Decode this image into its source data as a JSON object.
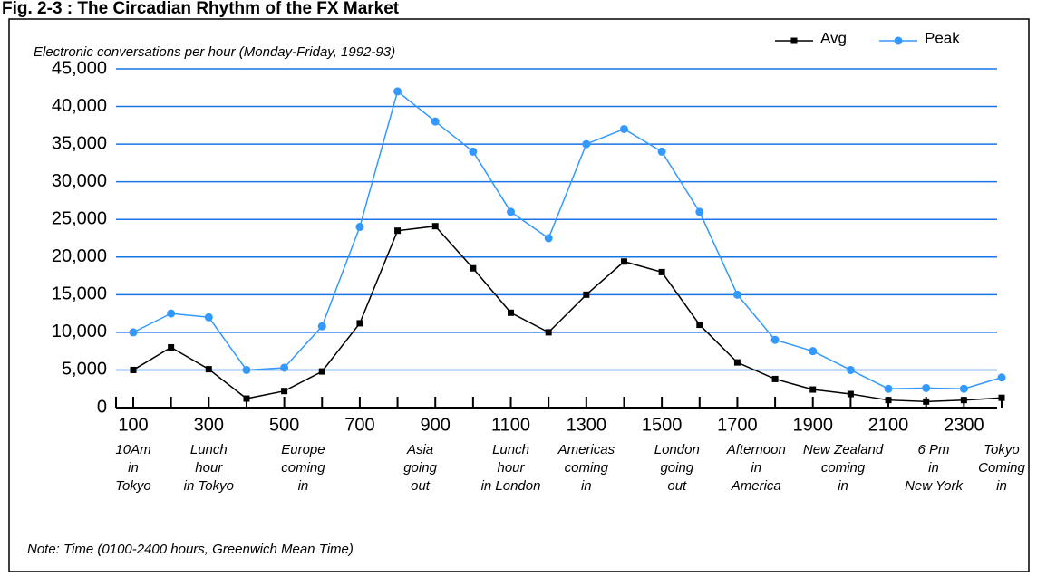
{
  "chart_data": {
    "type": "line",
    "title": "Fig. 2-3 : The Circadian Rhythm of the FX Market",
    "y_axis_label": "Electronic conversations per hour (Monday-Friday, 1992-93)",
    "note": "Note: Time (0100-2400 hours, Greenwich Mean Time)",
    "x": [
      100,
      200,
      300,
      400,
      500,
      600,
      700,
      800,
      900,
      1000,
      1100,
      1200,
      1300,
      1400,
      1500,
      1600,
      1700,
      1800,
      1900,
      2000,
      2100,
      2200,
      2300,
      2400
    ],
    "series": [
      {
        "name": "Avg",
        "color": "#000000",
        "marker": "square",
        "values": [
          5000,
          8000,
          5100,
          1200,
          2200,
          4800,
          11200,
          23500,
          24100,
          18500,
          12600,
          10000,
          15000,
          19400,
          18000,
          11000,
          6000,
          3800,
          2400,
          1800,
          1000,
          800,
          1000,
          1300
        ]
      },
      {
        "name": "Peak",
        "color": "#3399ff",
        "marker": "circle",
        "values": [
          10000,
          12500,
          12000,
          5000,
          5300,
          10800,
          24000,
          42000,
          38000,
          34000,
          26000,
          22500,
          35000,
          37000,
          34000,
          26000,
          15000,
          9000,
          7500,
          5000,
          2500,
          2600,
          2500,
          4000
        ]
      }
    ],
    "xlim": [
      100,
      2400
    ],
    "xticks": [
      100,
      300,
      500,
      700,
      900,
      1100,
      1300,
      1500,
      1700,
      1900,
      2100,
      2300
    ],
    "ylim": [
      0,
      45000
    ],
    "yticks": [
      0,
      {
        "value": 5000,
        "label": "5,000"
      },
      {
        "value": 10000,
        "label": "10,000"
      },
      {
        "value": 15000,
        "label": "15,000"
      },
      {
        "value": 20000,
        "label": "20,000"
      },
      {
        "value": 25000,
        "label": "25,000"
      },
      {
        "value": 30000,
        "label": "30,000"
      },
      {
        "value": 35000,
        "label": "35,000"
      },
      {
        "value": 40000,
        "label": "40,000"
      },
      {
        "value": 45000,
        "label": "45,000"
      }
    ],
    "grid": true,
    "grid_color": "#1a73e8",
    "legend": "top-right",
    "annotations": [
      {
        "x": 100,
        "lines": [
          "10Am",
          "in",
          "Tokyo"
        ]
      },
      {
        "x": 300,
        "lines": [
          "Lunch",
          "hour",
          "in Tokyo"
        ]
      },
      {
        "x": 550,
        "lines": [
          "Europe",
          "coming",
          "in"
        ]
      },
      {
        "x": 860,
        "lines": [
          "Asia",
          "going",
          "out"
        ]
      },
      {
        "x": 1100,
        "lines": [
          "Lunch",
          "hour",
          "in London"
        ]
      },
      {
        "x": 1300,
        "lines": [
          "Americas",
          "coming",
          "in"
        ]
      },
      {
        "x": 1540,
        "lines": [
          "London",
          "going",
          "out"
        ]
      },
      {
        "x": 1750,
        "lines": [
          "Afternoon",
          "in",
          "America"
        ]
      },
      {
        "x": 1980,
        "lines": [
          "New Zealand",
          "coming",
          "in"
        ]
      },
      {
        "x": 2220,
        "lines": [
          "6 Pm",
          "in",
          "New York"
        ]
      },
      {
        "x": 2400,
        "lines": [
          "Tokyo",
          "Coming",
          "in"
        ]
      }
    ]
  }
}
